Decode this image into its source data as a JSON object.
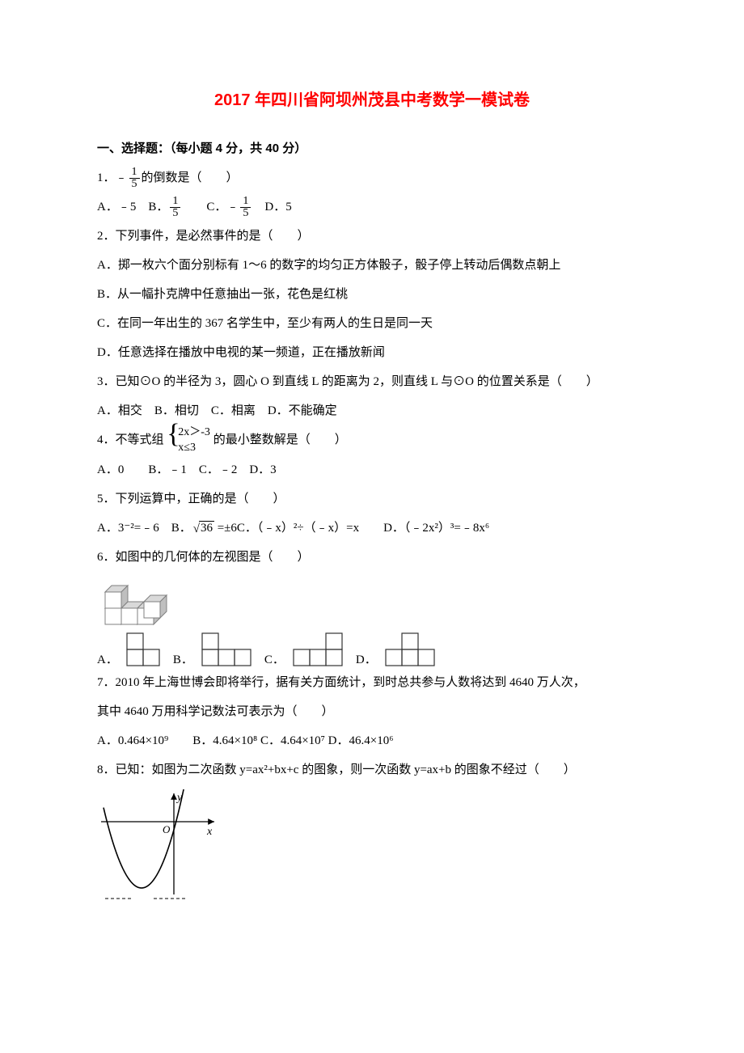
{
  "colors": {
    "title": "#ff0000",
    "text": "#000000",
    "background": "#ffffff",
    "cube_light": "#ffffff",
    "cube_mid": "#d9d9d9",
    "cube_dark": "#bfbfbf",
    "cube_stroke": "#808080",
    "shape_stroke": "#333333",
    "graph_stroke": "#000000"
  },
  "fonts": {
    "title_family": "SimHei",
    "body_family": "SimSun",
    "title_size_pt": 15,
    "body_size_pt": 11
  },
  "title": "2017 年四川省阿坝州茂县中考数学一模试卷",
  "section1_head": "一、选择题：（每小题 4 分，共 40 分）",
  "q1": {
    "stem_pre": "1．﹣",
    "stem_post": "的倒数是（　　）",
    "frac_num": "1",
    "frac_den": "5",
    "optA_pre": "A．﹣5　B．",
    "optB_num": "1",
    "optB_den": "5",
    "optC_pre": "　　C．﹣",
    "optC_num": "1",
    "optC_den": "5",
    "optC_post": "　D．5"
  },
  "q2": {
    "stem": "2．下列事件，是必然事件的是（　　）",
    "A": "A．掷一枚六个面分别标有 1～6 的数字的均匀正方体骰子，骰子停上转动后偶数点朝上",
    "B": "B．从一幅扑克牌中任意抽出一张，花色是红桃",
    "C": "C．在同一年出生的 367 名学生中，至少有两人的生日是同一天",
    "D": "D．任意选择在播放中电视的某一频道，正在播放新闻"
  },
  "q3": {
    "stem": "3．已知⊙O 的半径为 3，圆心 O 到直线 L 的距离为 2，则直线 L 与⊙O 的位置关系是（　　）",
    "opts": "A．相交　B．相切　C．相离　D．不能确定"
  },
  "q4": {
    "stem_pre": "4．不等式组",
    "row1": "2x＞-3",
    "row2": "x≤3",
    "stem_post": "的最小整数解是（　　）",
    "opts": "A．0　　B．﹣1　C．﹣2　D．3"
  },
  "q5": {
    "stem": "5．下列运算中，正确的是（　　）",
    "optA": "A．3⁻²=﹣6　B．",
    "sqrt_val": "36",
    "optB_post": " =±6",
    "optC": "C．（﹣x）²÷（﹣x）=x　　D．（﹣2x²）³=﹣8x⁶"
  },
  "q6": {
    "stem": "6．如图中的几何体的左视图是（　　）",
    "labels": {
      "A": "A．",
      "B": "B．",
      "C": "C．",
      "D": "D．"
    }
  },
  "q7": {
    "line1": "7．2010 年上海世博会即将举行，据有关方面统计，到时总共参与人数将达到 4640 万人次，",
    "line2": "其中 4640 万用科学记数法可表示为（　　）",
    "opts": "A．0.464×10⁹　　B．4.64×10⁸ C．4.64×10⁷ D．46.4×10⁶"
  },
  "q8": {
    "stem": "8．已知：如图为二次函数 y=ax²+bx+c 的图象，则一次函数 y=ax+b 的图象不经过（　　）",
    "graph": {
      "width": 150,
      "height": 140,
      "x_axis_y": 40,
      "y_axis_x": 95,
      "label_y": "y",
      "label_x": "x",
      "label_o": "O",
      "parabola_vertex_x": 55,
      "parabola_vertex_y": 122,
      "parabola_a": 0.045,
      "x_range": [
        8,
        120
      ]
    }
  }
}
